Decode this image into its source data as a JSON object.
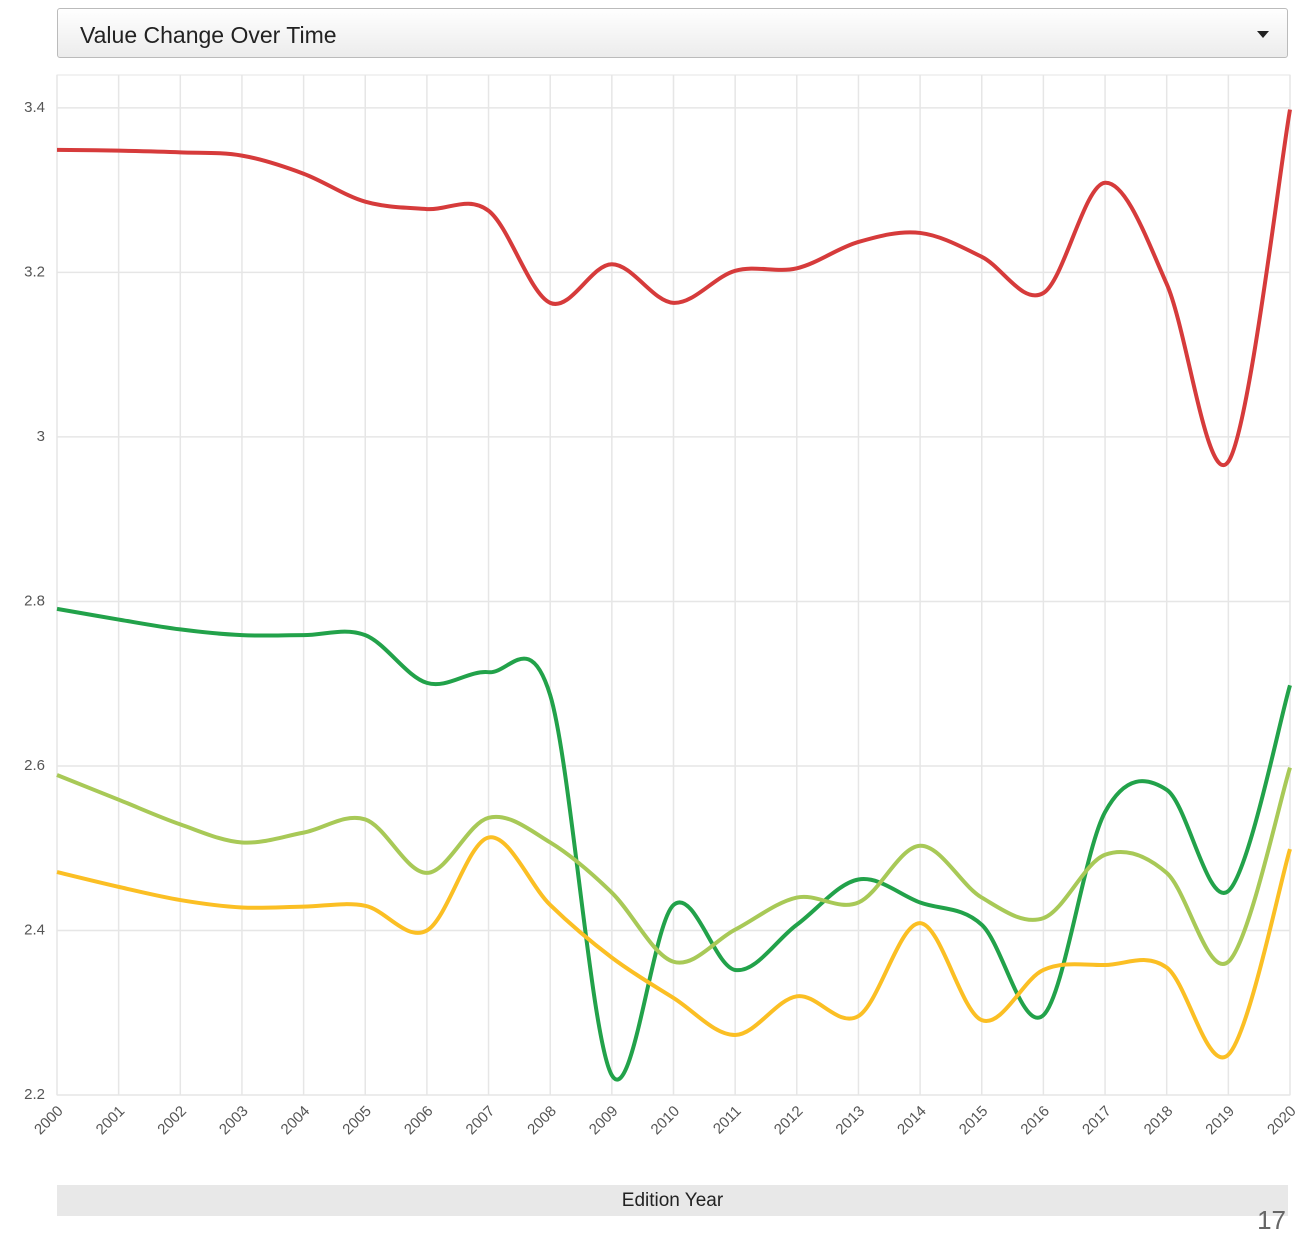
{
  "dropdown": {
    "selected": "Value Change Over Time"
  },
  "page_number": "17",
  "chart_data": {
    "type": "line",
    "x_label": "Edition Year",
    "x": [
      2000,
      2001,
      2002,
      2003,
      2004,
      2005,
      2006,
      2007,
      2008,
      2009,
      2010,
      2011,
      2012,
      2013,
      2014,
      2015,
      2016,
      2017,
      2018,
      2019,
      2020
    ],
    "xlim": [
      2000,
      2020
    ],
    "xticks": [
      2000,
      2001,
      2002,
      2003,
      2004,
      2005,
      2006,
      2007,
      2008,
      2009,
      2010,
      2011,
      2012,
      2013,
      2014,
      2015,
      2016,
      2017,
      2018,
      2019,
      2020
    ],
    "ylim": [
      2.2,
      3.44
    ],
    "yticks": [
      2.2,
      2.4,
      2.6,
      2.8,
      3,
      3.2,
      3.4
    ],
    "grid": true,
    "series": [
      {
        "color": "#d63b3b",
        "values": [
          3.349,
          3.348,
          3.346,
          3.342,
          3.32,
          3.286,
          3.277,
          3.275,
          3.163,
          3.21,
          3.163,
          3.202,
          3.205,
          3.237,
          3.248,
          3.219,
          3.175,
          3.309,
          3.186,
          2.97,
          3.398
        ]
      },
      {
        "color": "#22a24a",
        "values": [
          2.791,
          2.778,
          2.766,
          2.759,
          2.759,
          2.759,
          2.701,
          2.714,
          2.686,
          2.224,
          2.431,
          2.352,
          2.407,
          2.462,
          2.434,
          2.407,
          2.297,
          2.544,
          2.571,
          2.448,
          2.698
        ]
      },
      {
        "color": "#a8c957",
        "values": [
          2.589,
          2.559,
          2.529,
          2.507,
          2.519,
          2.535,
          2.47,
          2.537,
          2.507,
          2.446,
          2.362,
          2.401,
          2.44,
          2.434,
          2.503,
          2.44,
          2.415,
          2.492,
          2.47,
          2.362,
          2.598
        ]
      },
      {
        "color": "#fbbf24",
        "values": [
          2.471,
          2.453,
          2.437,
          2.428,
          2.429,
          2.43,
          2.4,
          2.513,
          2.431,
          2.367,
          2.318,
          2.273,
          2.32,
          2.296,
          2.409,
          2.291,
          2.352,
          2.358,
          2.355,
          2.249,
          2.499
        ]
      }
    ]
  }
}
